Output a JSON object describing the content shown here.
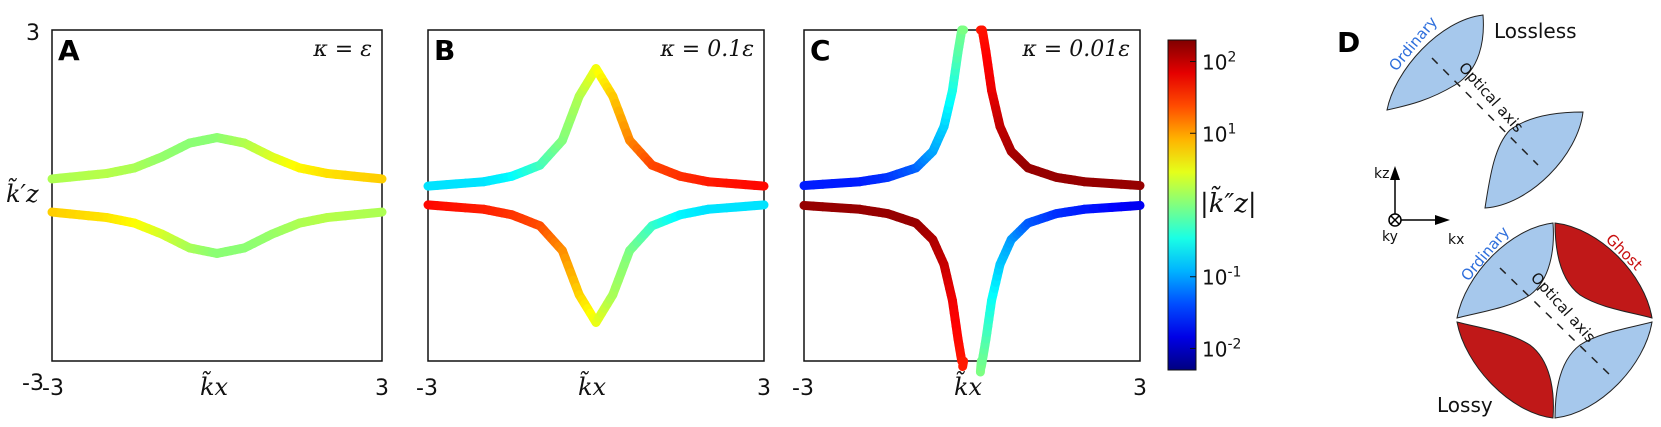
{
  "chart_data": [
    {
      "type": "line",
      "panel_letter": "A",
      "annotation": "κ = ε",
      "xlabel": "k̃x",
      "ylabel": "k̃′z",
      "xlim": [
        -3,
        3
      ],
      "ylim": [
        -3,
        3
      ],
      "x_ticks": [
        "-3",
        "3"
      ],
      "y_ticks": [
        "3",
        "-3"
      ],
      "color_encoding": "log10 |k̃″z|",
      "series": [
        {
          "x": [
            -3,
            -2,
            -1.5,
            -1,
            -0.5,
            0,
            0.5,
            1,
            1.5,
            2,
            3
          ],
          "y": [
            0.3,
            0.4,
            0.5,
            0.7,
            0.95,
            1.05,
            0.95,
            0.7,
            0.5,
            0.4,
            0.3
          ],
          "log_color": [
            0.2,
            0.25,
            0.2,
            0.1,
            0.05,
            0.05,
            0.2,
            0.4,
            0.6,
            0.7,
            0.8
          ]
        },
        {
          "x": [
            -3,
            -2,
            -1.5,
            -1,
            -0.5,
            0,
            0.5,
            1,
            1.5,
            2,
            3
          ],
          "y": [
            -0.3,
            -0.4,
            -0.5,
            -0.7,
            -0.95,
            -1.05,
            -0.95,
            -0.7,
            -0.5,
            -0.4,
            -0.3
          ],
          "log_color": [
            0.8,
            0.7,
            0.6,
            0.4,
            0.2,
            0.05,
            0.05,
            0.1,
            0.2,
            0.25,
            0.2
          ]
        }
      ]
    },
    {
      "type": "line",
      "panel_letter": "B",
      "annotation": "κ = 0.1ε",
      "xlabel": "k̃x",
      "xlim": [
        -3,
        3
      ],
      "ylim": [
        -3,
        3
      ],
      "x_ticks": [
        "-3",
        "3"
      ],
      "color_encoding": "log10 |k̃″z|",
      "series": [
        {
          "x": [
            -3,
            -2,
            -1.5,
            -1,
            -0.6,
            -0.3,
            0,
            0.3,
            0.6,
            1,
            1.5,
            2,
            3
          ],
          "y": [
            0.17,
            0.25,
            0.35,
            0.55,
            1.0,
            1.8,
            2.3,
            1.8,
            1.0,
            0.55,
            0.35,
            0.25,
            0.17
          ],
          "log_color": [
            -0.7,
            -0.7,
            -0.6,
            -0.3,
            0,
            0.2,
            0.5,
            0.8,
            1.1,
            1.4,
            1.5,
            1.6,
            1.7
          ]
        },
        {
          "x": [
            -3,
            -2,
            -1.5,
            -1,
            -0.6,
            -0.3,
            0,
            0.3,
            0.6,
            1,
            1.5,
            2,
            3
          ],
          "y": [
            -0.17,
            -0.25,
            -0.35,
            -0.55,
            -1.0,
            -1.8,
            -2.3,
            -1.8,
            -1.0,
            -0.55,
            -0.35,
            -0.25,
            -0.17
          ],
          "log_color": [
            1.7,
            1.6,
            1.5,
            1.4,
            1.1,
            0.8,
            0.5,
            0.2,
            0,
            -0.3,
            -0.6,
            -0.7,
            -0.7
          ]
        }
      ]
    },
    {
      "type": "line",
      "panel_letter": "C",
      "annotation": "κ = 0.01ε",
      "xlabel": "k̃x",
      "xlim": [
        -3,
        3
      ],
      "ylim": [
        -3,
        3
      ],
      "x_ticks": [
        "-3",
        "3"
      ],
      "color_encoding": "log10 |k̃″z|",
      "series": [
        {
          "x": [
            -3,
            -2,
            -1.5,
            -1,
            -0.7,
            -0.5,
            -0.35,
            -0.25,
            -0.15
          ],
          "y": [
            0.18,
            0.25,
            0.33,
            0.5,
            0.8,
            1.25,
            1.9,
            2.6,
            3.2
          ],
          "log_color": [
            -1.6,
            -1.6,
            -1.5,
            -1.3,
            -1.0,
            -0.8,
            -0.5,
            -0.2,
            0
          ]
        },
        {
          "x": [
            0.15,
            0.25,
            0.35,
            0.5,
            0.7,
            1,
            1.5,
            2,
            3
          ],
          "y": [
            3.2,
            2.6,
            1.9,
            1.25,
            0.8,
            0.5,
            0.33,
            0.25,
            0.18
          ],
          "log_color": [
            1.6,
            1.7,
            1.8,
            2.0,
            2.1,
            2.2,
            2.2,
            2.2,
            2.2
          ]
        },
        {
          "x": [
            -3,
            -2,
            -1.5,
            -1,
            -0.7,
            -0.5,
            -0.35,
            -0.25,
            -0.15
          ],
          "y": [
            -0.18,
            -0.25,
            -0.33,
            -0.5,
            -0.8,
            -1.25,
            -1.9,
            -2.6,
            -3.2
          ],
          "log_color": [
            2.2,
            2.2,
            2.2,
            2.2,
            2.1,
            2.0,
            1.8,
            1.7,
            1.6
          ]
        },
        {
          "x": [
            0.15,
            0.25,
            0.35,
            0.5,
            0.7,
            1,
            1.5,
            2,
            3
          ],
          "y": [
            -3.2,
            -2.6,
            -1.9,
            -1.25,
            -0.8,
            -0.5,
            -0.33,
            -0.25,
            -0.18
          ],
          "log_color": [
            0,
            -0.2,
            -0.5,
            -0.8,
            -1.0,
            -1.3,
            -1.5,
            -1.6,
            -1.8
          ]
        }
      ]
    }
  ],
  "colorbar": {
    "label": "|k̃″z|",
    "log_range": [
      -2.3,
      2.3
    ],
    "colormap": "jet",
    "ticks": [
      {
        "base": "10",
        "exp": "2",
        "log": 2
      },
      {
        "base": "10",
        "exp": "1",
        "log": 1
      },
      {
        "base": "10",
        "exp": "-1",
        "log": -1
      },
      {
        "base": "10",
        "exp": "-2",
        "log": -2
      }
    ]
  },
  "diagram": {
    "panel_letter": "D",
    "lossless_label": "Lossless",
    "lossy_label": "Lossy",
    "ordinary_label": "Ordinary",
    "ghost_label": "Ghost",
    "optical_axis_label": "Optical axis",
    "axis_kz": "kz",
    "axis_kx": "kx",
    "axis_ky": "ky",
    "colors": {
      "ordinary": "#a6c8ec",
      "ghost": "#c01818",
      "ordinary_text": "#2f6fdc",
      "ghost_text": "#c81010"
    }
  }
}
